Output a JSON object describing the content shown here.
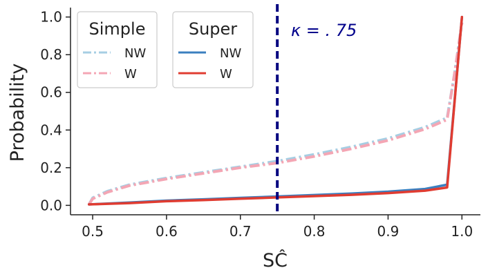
{
  "chart_data": {
    "type": "line",
    "xlabel": "SĈ",
    "ylabel": "Probability",
    "xlim": [
      0.47,
      1.025
    ],
    "ylim": [
      -0.05,
      1.05
    ],
    "x_ticks": [
      "0.5",
      "0.6",
      "0.7",
      "0.8",
      "0.9",
      "1.0"
    ],
    "y_ticks": [
      "0.0",
      "0.2",
      "0.4",
      "0.6",
      "0.8",
      "1.0"
    ],
    "x_tick_values": [
      0.5,
      0.6,
      0.7,
      0.8,
      0.9,
      1.0
    ],
    "y_tick_values": [
      0.0,
      0.2,
      0.4,
      0.6,
      0.8,
      1.0
    ],
    "grid": false,
    "vline": {
      "x": 0.75,
      "color": "#00007f",
      "style": "dashed"
    },
    "annotation": {
      "text": "κ = . 75",
      "color": "#00008b"
    },
    "legend": [
      {
        "title": "Simple",
        "entries": [
          {
            "label": "NW",
            "series": 0
          },
          {
            "label": "W",
            "series": 1
          }
        ]
      },
      {
        "title": "Super",
        "entries": [
          {
            "label": "NW",
            "series": 2
          },
          {
            "label": "W",
            "series": 3
          }
        ]
      }
    ],
    "series": [
      {
        "color": "#a6cee3",
        "style": "dashdot",
        "x": [
          0.495,
          0.5,
          0.52,
          0.55,
          0.6,
          0.65,
          0.7,
          0.75,
          0.8,
          0.85,
          0.9,
          0.95,
          0.98,
          0.99,
          1.0
        ],
        "y": [
          0.005,
          0.04,
          0.075,
          0.11,
          0.145,
          0.175,
          0.205,
          0.235,
          0.27,
          0.31,
          0.355,
          0.415,
          0.465,
          0.7,
          0.97
        ]
      },
      {
        "color": "#f4a6b4",
        "style": "dashdot",
        "x": [
          0.495,
          0.5,
          0.52,
          0.55,
          0.6,
          0.65,
          0.7,
          0.75,
          0.8,
          0.85,
          0.9,
          0.95,
          0.98,
          0.99,
          1.0
        ],
        "y": [
          0.005,
          0.035,
          0.07,
          0.105,
          0.14,
          0.17,
          0.2,
          0.225,
          0.26,
          0.3,
          0.345,
          0.405,
          0.455,
          0.7,
          0.97
        ]
      },
      {
        "color": "#3b7fbf",
        "style": "solid",
        "x": [
          0.495,
          0.55,
          0.6,
          0.65,
          0.7,
          0.75,
          0.8,
          0.85,
          0.9,
          0.95,
          0.98,
          1.0
        ],
        "y": [
          0.005,
          0.015,
          0.025,
          0.032,
          0.04,
          0.047,
          0.055,
          0.063,
          0.073,
          0.087,
          0.11,
          1.0
        ]
      },
      {
        "color": "#e03c31",
        "style": "solid",
        "x": [
          0.495,
          0.55,
          0.6,
          0.65,
          0.7,
          0.75,
          0.8,
          0.85,
          0.9,
          0.95,
          0.98,
          1.0
        ],
        "y": [
          0.005,
          0.012,
          0.022,
          0.028,
          0.035,
          0.042,
          0.049,
          0.056,
          0.065,
          0.078,
          0.095,
          1.0
        ]
      }
    ]
  }
}
